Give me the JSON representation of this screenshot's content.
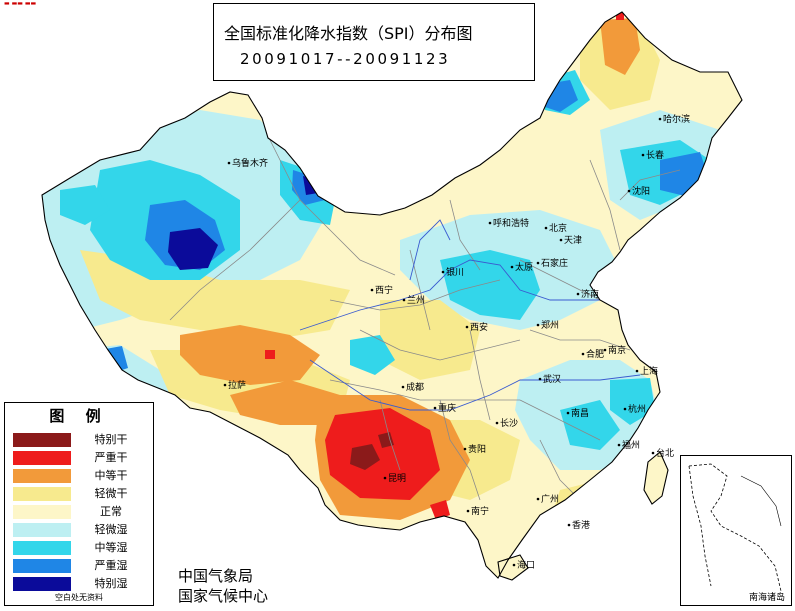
{
  "title": {
    "line1": "全国标准化降水指数（SPI）分布图",
    "line2": "20091017--20091123"
  },
  "legend": {
    "heading": "图  例",
    "items": [
      {
        "label": "特别干",
        "color": "#8b1a1a"
      },
      {
        "label": "严重干",
        "color": "#ee1c1c"
      },
      {
        "label": "中等干",
        "color": "#f29a3a"
      },
      {
        "label": "轻微干",
        "color": "#f7ea8e"
      },
      {
        "label": "正常",
        "color": "#fdf6c8"
      },
      {
        "label": "轻微湿",
        "color": "#bdeff2"
      },
      {
        "label": "中等湿",
        "color": "#33d6ea"
      },
      {
        "label": "严重湿",
        "color": "#1f86e6"
      },
      {
        "label": "特别湿",
        "color": "#0b0b9a"
      }
    ],
    "footer": "空白处无资料"
  },
  "agency": {
    "line1": "中国气象局",
    "line2": "国家气候中心"
  },
  "inset": {
    "label": "南海诸岛"
  },
  "cities": [
    {
      "name": "乌鲁木齐"
    },
    {
      "name": "哈尔滨"
    },
    {
      "name": "长春"
    },
    {
      "name": "沈阳"
    },
    {
      "name": "呼和浩特"
    },
    {
      "name": "北京"
    },
    {
      "name": "天津"
    },
    {
      "name": "太原"
    },
    {
      "name": "石家庄"
    },
    {
      "name": "银川"
    },
    {
      "name": "济南"
    },
    {
      "name": "西宁"
    },
    {
      "name": "兰州"
    },
    {
      "name": "郑州"
    },
    {
      "name": "西安"
    },
    {
      "name": "合肥"
    },
    {
      "name": "南京"
    },
    {
      "name": "上海"
    },
    {
      "name": "拉萨"
    },
    {
      "name": "成都"
    },
    {
      "name": "武汉"
    },
    {
      "name": "重庆"
    },
    {
      "name": "杭州"
    },
    {
      "name": "南昌"
    },
    {
      "name": "长沙"
    },
    {
      "name": "福州"
    },
    {
      "name": "贵阳"
    },
    {
      "name": "台北"
    },
    {
      "name": "昆明"
    },
    {
      "name": "广州"
    },
    {
      "name": "南宁"
    },
    {
      "name": "香港"
    },
    {
      "name": "海口"
    }
  ]
}
